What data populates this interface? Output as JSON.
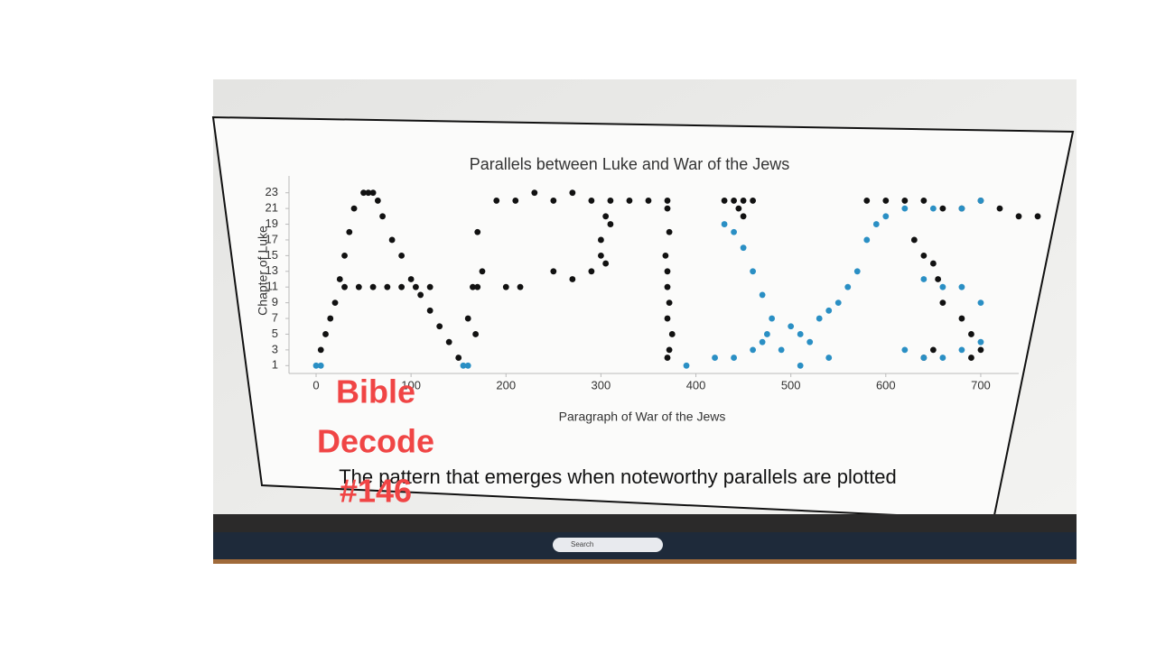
{
  "chart_data": {
    "type": "scatter",
    "title": "Parallels between Luke and War of the Jews",
    "x_label": "Paragraph of War of the Jews",
    "y_label": "Chapter of Luke",
    "xlim": [
      0,
      740
    ],
    "xticks": [
      0,
      100,
      200,
      300,
      400,
      500,
      600,
      700
    ],
    "ylim": [
      0,
      24
    ],
    "yticks": [
      1,
      3,
      5,
      7,
      9,
      11,
      13,
      15,
      17,
      19,
      21,
      23
    ],
    "series": [
      {
        "color": "#111111",
        "x": [
          5,
          10,
          15,
          20,
          25,
          30,
          35,
          40,
          50,
          55,
          60,
          65,
          70,
          80,
          90,
          100,
          110,
          120,
          130,
          140,
          150,
          30,
          45,
          60,
          75,
          90,
          105,
          120,
          165,
          170,
          160,
          168,
          175,
          170,
          190,
          210,
          230,
          250,
          270,
          290,
          310,
          330,
          350,
          370,
          305,
          310,
          300,
          300,
          305,
          290,
          270,
          250,
          215,
          200,
          370,
          372,
          368,
          370,
          370,
          372,
          370,
          375,
          372,
          370,
          430,
          440,
          450,
          460,
          445,
          450,
          580,
          600,
          620,
          640,
          660,
          680,
          700,
          720,
          740,
          760,
          630,
          640,
          650,
          655,
          660,
          680,
          690,
          640,
          650,
          690,
          700
        ],
        "values": [
          3,
          5,
          7,
          9,
          12,
          15,
          18,
          21,
          23,
          23,
          23,
          22,
          20,
          17,
          15,
          12,
          10,
          8,
          6,
          4,
          2,
          11,
          11,
          11,
          11,
          11,
          11,
          11,
          11,
          11,
          7,
          5,
          13,
          18,
          22,
          22,
          23,
          22,
          23,
          22,
          22,
          22,
          22,
          22,
          20,
          19,
          17,
          15,
          14,
          13,
          12,
          13,
          11,
          11,
          21,
          18,
          15,
          13,
          11,
          9,
          7,
          5,
          3,
          2,
          22,
          22,
          22,
          22,
          21,
          20,
          22,
          22,
          22,
          22,
          21,
          21,
          22,
          21,
          20,
          20,
          17,
          15,
          14,
          12,
          9,
          7,
          5,
          2,
          3,
          2,
          3
        ]
      },
      {
        "color": "#2a8fc4",
        "x": [
          0,
          5,
          155,
          160,
          390,
          420,
          440,
          460,
          470,
          475,
          480,
          470,
          460,
          450,
          440,
          430,
          500,
          510,
          520,
          530,
          540,
          550,
          560,
          570,
          580,
          590,
          600,
          620,
          650,
          680,
          700,
          640,
          660,
          680,
          700,
          700,
          680,
          660,
          640,
          620,
          540,
          510,
          490
        ],
        "values": [
          1,
          1,
          1,
          1,
          1,
          2,
          2,
          3,
          4,
          5,
          7,
          10,
          13,
          16,
          18,
          19,
          6,
          5,
          4,
          7,
          8,
          9,
          11,
          13,
          17,
          19,
          20,
          21,
          21,
          21,
          22,
          12,
          11,
          11,
          9,
          4,
          3,
          2,
          2,
          3,
          2,
          1,
          3
        ]
      }
    ]
  },
  "caption": "The pattern that emerges when noteworthy parallels are plotted",
  "overlay": {
    "lines": [
      "Bible",
      "Decode",
      "#146"
    ]
  },
  "taskbar": {
    "search": "Search"
  }
}
